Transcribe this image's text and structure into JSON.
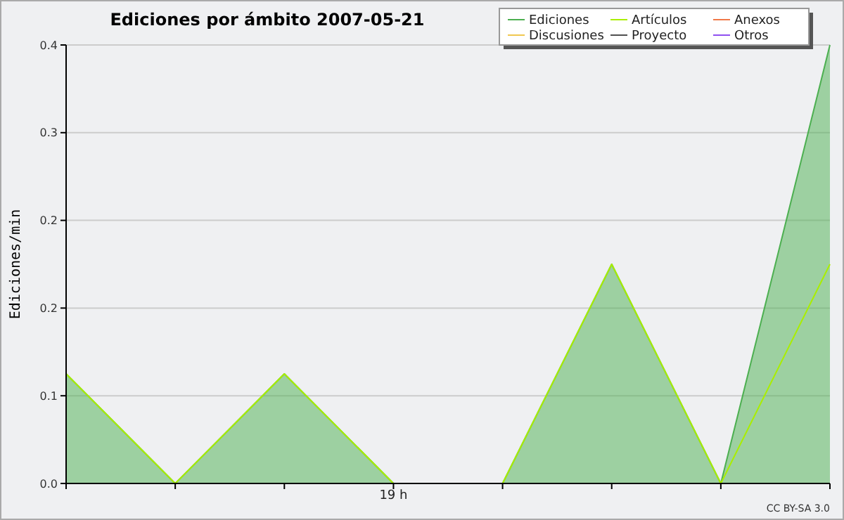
{
  "chart_data": {
    "type": "line",
    "title": "Ediciones por ámbito  2007-05-21",
    "ylabel": "Ediciones/min",
    "categories": [
      null,
      null,
      null,
      "19 h",
      null,
      null,
      null,
      null
    ],
    "series": [
      {
        "name": "Ediciones",
        "type": "area",
        "color": "#4caf50",
        "values": [
          0.1,
          0,
          0.1,
          0,
          0,
          0.2,
          0,
          0.4
        ]
      },
      {
        "name": "Artículos",
        "color": "#aaee00",
        "values": [
          0.1,
          0,
          0.1,
          0,
          0,
          0.2,
          0,
          0.2
        ]
      },
      {
        "name": "Anexos",
        "color": "#f07848",
        "values": [
          null,
          null,
          null,
          null,
          null,
          null,
          null,
          null
        ]
      },
      {
        "name": "Discusiones",
        "color": "#f0c850",
        "values": [
          null,
          null,
          null,
          null,
          null,
          null,
          null,
          null
        ]
      },
      {
        "name": "Proyecto",
        "color": "#505050",
        "values": [
          null,
          null,
          null,
          null,
          null,
          null,
          null,
          null
        ]
      },
      {
        "name": "Otros",
        "color": "#9050f0",
        "values": [
          null,
          null,
          null,
          null,
          null,
          null,
          null,
          null
        ]
      }
    ],
    "ylim": [
      0,
      0.4
    ],
    "yticks": [
      {
        "value": 0,
        "label": "0.0"
      },
      {
        "value": 0.08,
        "label": "0.1"
      },
      {
        "value": 0.16,
        "label": "0.2"
      },
      {
        "value": 0.24,
        "label": "0.2"
      },
      {
        "value": 0.32,
        "label": "0.3"
      },
      {
        "value": 0.4,
        "label": "0.4"
      }
    ],
    "grid": "y",
    "legend": "top right",
    "annotations": [
      "CC BY-SA 3.0"
    ]
  }
}
